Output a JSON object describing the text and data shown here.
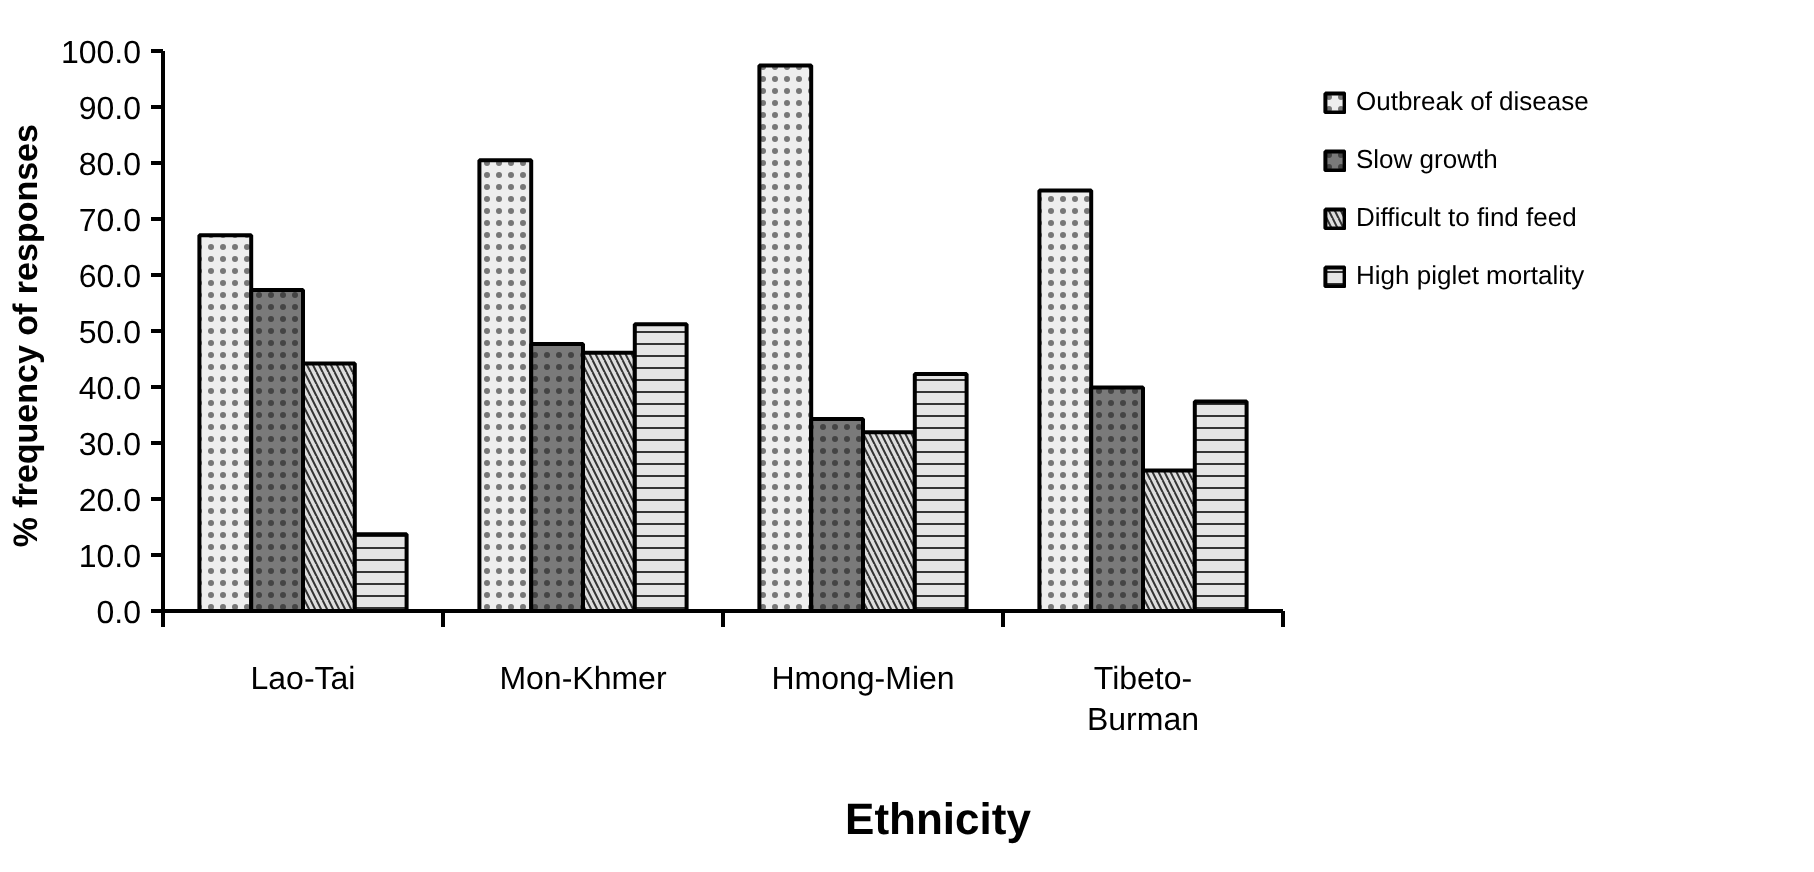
{
  "chart_data": {
    "type": "bar",
    "xlabel": "Ethnicity",
    "ylabel": "%  frequency of responses",
    "categories": [
      "Lao-Tai",
      "Mon-Khmer",
      "Hmong-Mien",
      "Tibeto-Burman"
    ],
    "series": [
      {
        "name": "Outbreak of disease",
        "color": "#eeeeee",
        "values": [
          67.1,
          80.5,
          97.4,
          75.1
        ]
      },
      {
        "name": "Slow growth",
        "color": "#7a7a7a",
        "values": [
          57.3,
          47.7,
          34.3,
          39.9
        ]
      },
      {
        "name": "Difficult to find feed",
        "color": "#dddddd",
        "values": [
          44.2,
          46.1,
          31.9,
          25.1
        ]
      },
      {
        "name": "High piglet mortality",
        "color": "#e4e4e4",
        "values": [
          13.7,
          51.2,
          42.3,
          37.4
        ]
      }
    ],
    "ylim": [
      0,
      100
    ],
    "yticks": [
      {
        "value": 0,
        "label": "0.0"
      },
      {
        "value": 10,
        "label": "10.0"
      },
      {
        "value": 20,
        "label": "20.0"
      },
      {
        "value": 30,
        "label": "30.0"
      },
      {
        "value": 40,
        "label": "40.0"
      },
      {
        "value": 50,
        "label": "50.0"
      },
      {
        "value": 60,
        "label": "60.0"
      },
      {
        "value": 70,
        "label": "70.0"
      },
      {
        "value": 80,
        "label": "80.0"
      },
      {
        "value": 90,
        "label": "90.0"
      },
      {
        "value": 100,
        "label": "100.0"
      }
    ],
    "grid": false,
    "legend": "top right"
  }
}
